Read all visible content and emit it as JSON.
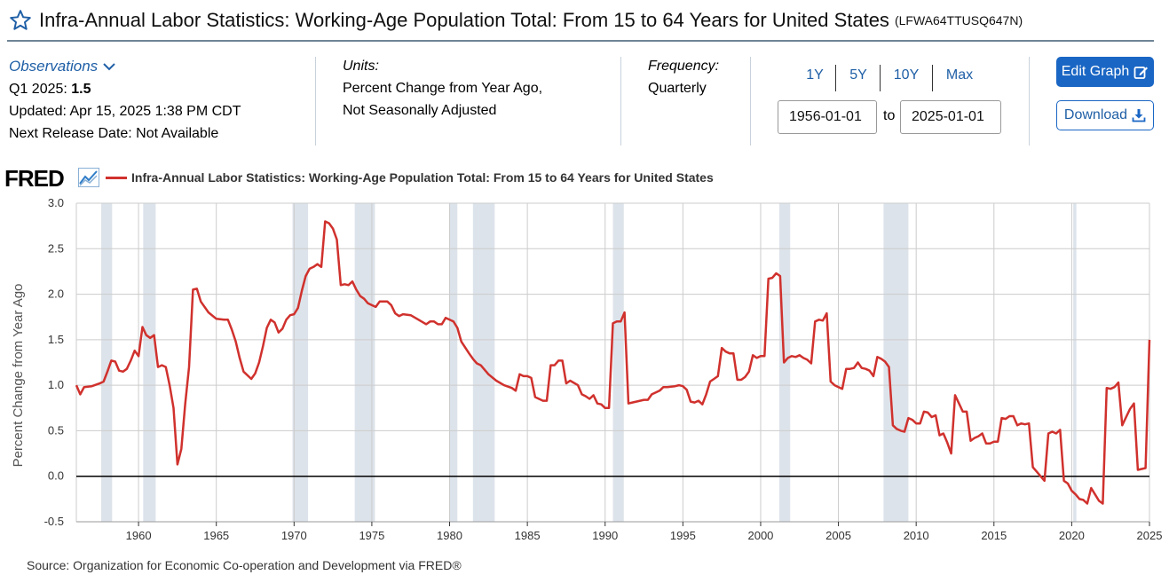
{
  "header": {
    "title": "Infra-Annual Labor Statistics: Working-Age Population Total: From 15 to 64 Years for United States",
    "series_id": "(LFWA64TTUSQ647N)",
    "star_icon": "star-outline-icon"
  },
  "observations": {
    "label": "Observations",
    "chevron_icon": "chevron-down-icon",
    "latest_period": "Q1 2025:",
    "latest_value": "1.5",
    "updated": "Updated: Apr 15, 2025 1:38 PM CDT",
    "next_release": "Next Release Date: Not Available"
  },
  "units": {
    "label": "Units:",
    "line1": "Percent Change from Year Ago,",
    "line2": "Not Seasonally Adjusted"
  },
  "frequency": {
    "label": "Frequency:",
    "value": "Quarterly"
  },
  "range": {
    "buttons": [
      "1Y",
      "5Y",
      "10Y",
      "Max"
    ],
    "start": "1956-01-01",
    "to_label": "to",
    "end": "2025-01-01"
  },
  "actions": {
    "edit_label": "Edit Graph",
    "edit_icon": "edit-icon",
    "download_label": "Download",
    "download_icon": "download-icon"
  },
  "logo": {
    "text": "FRED",
    "icon": "line-chart-icon"
  },
  "source": "Source: Organization for Economic Co-operation and Development via FRED®",
  "colors": {
    "series": "#d0312d",
    "recession": "#dde3ea",
    "grid": "#cccccc",
    "accent": "#1a66c4"
  },
  "chart_data": {
    "type": "line",
    "title": "",
    "legend": "Infra-Annual Labor Statistics: Working-Age Population Total: From 15 to 64 Years for United States",
    "xlabel": "",
    "ylabel": "Percent Change from Year Ago",
    "xlim": [
      1956,
      2025
    ],
    "ylim": [
      -0.5,
      3.0
    ],
    "yticks": [
      "3.0",
      "2.5",
      "2.0",
      "1.5",
      "1.0",
      "0.5",
      "0.0",
      "-0.5"
    ],
    "xticks": [
      "1960",
      "1965",
      "1970",
      "1975",
      "1980",
      "1985",
      "1990",
      "1995",
      "2000",
      "2005",
      "2010",
      "2015",
      "2020",
      "2025"
    ],
    "grid": true,
    "legend_position": "top-left",
    "recessions": [
      [
        1957.6,
        1958.3
      ],
      [
        1960.3,
        1961.1
      ],
      [
        1969.9,
        1970.9
      ],
      [
        1973.9,
        1975.2
      ],
      [
        1980.0,
        1980.5
      ],
      [
        1981.5,
        1982.9
      ],
      [
        1990.5,
        1991.2
      ],
      [
        2001.2,
        2001.9
      ],
      [
        2007.9,
        2009.5
      ],
      [
        2020.1,
        2020.3
      ]
    ],
    "series": [
      {
        "points": [
          [
            1956.0,
            1.0
          ],
          [
            1956.25,
            0.9
          ],
          [
            1956.5,
            0.98
          ],
          [
            1957.0,
            0.99
          ],
          [
            1957.5,
            1.02
          ],
          [
            1957.75,
            1.04
          ],
          [
            1958.0,
            1.15
          ],
          [
            1958.25,
            1.27
          ],
          [
            1958.5,
            1.26
          ],
          [
            1958.75,
            1.16
          ],
          [
            1959.0,
            1.15
          ],
          [
            1959.25,
            1.18
          ],
          [
            1959.5,
            1.27
          ],
          [
            1959.75,
            1.38
          ],
          [
            1960.0,
            1.32
          ],
          [
            1960.25,
            1.64
          ],
          [
            1960.5,
            1.55
          ],
          [
            1960.75,
            1.52
          ],
          [
            1961.0,
            1.55
          ],
          [
            1961.25,
            1.2
          ],
          [
            1961.5,
            1.22
          ],
          [
            1961.75,
            1.2
          ],
          [
            1962.0,
            1.0
          ],
          [
            1962.25,
            0.75
          ],
          [
            1962.5,
            0.13
          ],
          [
            1962.75,
            0.3
          ],
          [
            1963.0,
            0.8
          ],
          [
            1963.25,
            1.2
          ],
          [
            1963.5,
            2.05
          ],
          [
            1963.75,
            2.06
          ],
          [
            1964.0,
            1.92
          ],
          [
            1964.5,
            1.8
          ],
          [
            1965.0,
            1.73
          ],
          [
            1965.5,
            1.72
          ],
          [
            1965.75,
            1.72
          ],
          [
            1966.0,
            1.61
          ],
          [
            1966.25,
            1.48
          ],
          [
            1966.5,
            1.3
          ],
          [
            1966.75,
            1.15
          ],
          [
            1967.25,
            1.07
          ],
          [
            1967.5,
            1.13
          ],
          [
            1967.75,
            1.25
          ],
          [
            1968.0,
            1.43
          ],
          [
            1968.25,
            1.63
          ],
          [
            1968.5,
            1.72
          ],
          [
            1968.75,
            1.69
          ],
          [
            1969.0,
            1.58
          ],
          [
            1969.25,
            1.62
          ],
          [
            1969.5,
            1.72
          ],
          [
            1969.75,
            1.77
          ],
          [
            1970.0,
            1.78
          ],
          [
            1970.25,
            1.85
          ],
          [
            1970.5,
            2.04
          ],
          [
            1970.75,
            2.2
          ],
          [
            1971.0,
            2.28
          ],
          [
            1971.25,
            2.3
          ],
          [
            1971.5,
            2.33
          ],
          [
            1971.75,
            2.3
          ],
          [
            1972.0,
            2.8
          ],
          [
            1972.25,
            2.78
          ],
          [
            1972.5,
            2.72
          ],
          [
            1972.75,
            2.6
          ],
          [
            1973.0,
            2.1
          ],
          [
            1973.25,
            2.11
          ],
          [
            1973.5,
            2.1
          ],
          [
            1973.75,
            2.14
          ],
          [
            1974.0,
            2.05
          ],
          [
            1974.25,
            1.98
          ],
          [
            1974.5,
            1.95
          ],
          [
            1974.75,
            1.9
          ],
          [
            1975.0,
            1.88
          ],
          [
            1975.25,
            1.86
          ],
          [
            1975.5,
            1.92
          ],
          [
            1976.0,
            1.92
          ],
          [
            1976.25,
            1.88
          ],
          [
            1976.5,
            1.79
          ],
          [
            1976.75,
            1.76
          ],
          [
            1977.0,
            1.78
          ],
          [
            1977.5,
            1.77
          ],
          [
            1978.0,
            1.72
          ],
          [
            1978.5,
            1.67
          ],
          [
            1978.75,
            1.7
          ],
          [
            1979.0,
            1.7
          ],
          [
            1979.25,
            1.67
          ],
          [
            1979.5,
            1.67
          ],
          [
            1979.75,
            1.74
          ],
          [
            1980.0,
            1.72
          ],
          [
            1980.25,
            1.7
          ],
          [
            1980.5,
            1.63
          ],
          [
            1980.75,
            1.48
          ],
          [
            1981.25,
            1.35
          ],
          [
            1981.5,
            1.29
          ],
          [
            1981.75,
            1.24
          ],
          [
            1982.0,
            1.22
          ],
          [
            1982.5,
            1.12
          ],
          [
            1983.0,
            1.05
          ],
          [
            1983.5,
            1.0
          ],
          [
            1984.0,
            0.97
          ],
          [
            1984.25,
            0.94
          ],
          [
            1984.5,
            1.12
          ],
          [
            1984.75,
            1.1
          ],
          [
            1985.0,
            1.1
          ],
          [
            1985.25,
            1.08
          ],
          [
            1985.5,
            0.87
          ],
          [
            1986.0,
            0.83
          ],
          [
            1986.25,
            0.83
          ],
          [
            1986.5,
            1.22
          ],
          [
            1986.75,
            1.22
          ],
          [
            1987.0,
            1.27
          ],
          [
            1987.25,
            1.27
          ],
          [
            1987.5,
            1.02
          ],
          [
            1987.75,
            1.05
          ],
          [
            1988.25,
            1.0
          ],
          [
            1988.5,
            0.9
          ],
          [
            1988.75,
            0.88
          ],
          [
            1989.0,
            0.85
          ],
          [
            1989.25,
            0.89
          ],
          [
            1989.5,
            0.8
          ],
          [
            1989.75,
            0.79
          ],
          [
            1990.0,
            0.75
          ],
          [
            1990.25,
            0.75
          ],
          [
            1990.5,
            1.68
          ],
          [
            1990.75,
            1.7
          ],
          [
            1991.0,
            1.7
          ],
          [
            1991.25,
            1.8
          ],
          [
            1991.5,
            0.8
          ],
          [
            1991.75,
            0.81
          ],
          [
            1992.0,
            0.82
          ],
          [
            1992.5,
            0.84
          ],
          [
            1992.75,
            0.84
          ],
          [
            1993.0,
            0.9
          ],
          [
            1993.5,
            0.94
          ],
          [
            1993.75,
            0.98
          ],
          [
            1994.0,
            0.98
          ],
          [
            1994.5,
            0.99
          ],
          [
            1994.75,
            1.0
          ],
          [
            1995.0,
            0.99
          ],
          [
            1995.25,
            0.95
          ],
          [
            1995.5,
            0.82
          ],
          [
            1995.75,
            0.81
          ],
          [
            1996.0,
            0.83
          ],
          [
            1996.25,
            0.79
          ],
          [
            1996.5,
            0.9
          ],
          [
            1996.75,
            1.04
          ],
          [
            1997.0,
            1.07
          ],
          [
            1997.25,
            1.1
          ],
          [
            1997.5,
            1.41
          ],
          [
            1997.75,
            1.37
          ],
          [
            1998.0,
            1.35
          ],
          [
            1998.25,
            1.35
          ],
          [
            1998.5,
            1.06
          ],
          [
            1998.75,
            1.06
          ],
          [
            1999.0,
            1.09
          ],
          [
            1999.25,
            1.15
          ],
          [
            1999.5,
            1.33
          ],
          [
            1999.75,
            1.3
          ],
          [
            2000.0,
            1.32
          ],
          [
            2000.25,
            1.32
          ],
          [
            2000.5,
            2.17
          ],
          [
            2000.75,
            2.18
          ],
          [
            2001.0,
            2.23
          ],
          [
            2001.25,
            2.2
          ],
          [
            2001.5,
            1.25
          ],
          [
            2001.75,
            1.3
          ],
          [
            2002.0,
            1.32
          ],
          [
            2002.25,
            1.31
          ],
          [
            2002.5,
            1.33
          ],
          [
            2002.75,
            1.3
          ],
          [
            2003.0,
            1.28
          ],
          [
            2003.25,
            1.24
          ],
          [
            2003.5,
            1.7
          ],
          [
            2003.75,
            1.72
          ],
          [
            2004.0,
            1.71
          ],
          [
            2004.25,
            1.79
          ],
          [
            2004.5,
            1.04
          ],
          [
            2004.75,
            1.0
          ],
          [
            2005.0,
            0.98
          ],
          [
            2005.25,
            0.96
          ],
          [
            2005.5,
            1.18
          ],
          [
            2005.75,
            1.18
          ],
          [
            2006.0,
            1.19
          ],
          [
            2006.25,
            1.25
          ],
          [
            2006.5,
            1.19
          ],
          [
            2006.75,
            1.18
          ],
          [
            2007.0,
            1.16
          ],
          [
            2007.25,
            1.1
          ],
          [
            2007.5,
            1.31
          ],
          [
            2007.75,
            1.29
          ],
          [
            2008.0,
            1.26
          ],
          [
            2008.25,
            1.2
          ],
          [
            2008.5,
            0.56
          ],
          [
            2008.75,
            0.52
          ],
          [
            2009.0,
            0.5
          ],
          [
            2009.25,
            0.49
          ],
          [
            2009.5,
            0.64
          ],
          [
            2009.75,
            0.62
          ],
          [
            2010.0,
            0.58
          ],
          [
            2010.25,
            0.58
          ],
          [
            2010.5,
            0.71
          ],
          [
            2010.75,
            0.7
          ],
          [
            2011.0,
            0.65
          ],
          [
            2011.25,
            0.67
          ],
          [
            2011.5,
            0.45
          ],
          [
            2011.75,
            0.47
          ],
          [
            2012.0,
            0.37
          ],
          [
            2012.25,
            0.25
          ],
          [
            2012.5,
            0.89
          ],
          [
            2012.75,
            0.8
          ],
          [
            2013.0,
            0.71
          ],
          [
            2013.25,
            0.71
          ],
          [
            2013.5,
            0.39
          ],
          [
            2013.75,
            0.42
          ],
          [
            2014.0,
            0.44
          ],
          [
            2014.25,
            0.47
          ],
          [
            2014.5,
            0.36
          ],
          [
            2014.75,
            0.36
          ],
          [
            2015.0,
            0.38
          ],
          [
            2015.25,
            0.38
          ],
          [
            2015.5,
            0.64
          ],
          [
            2015.75,
            0.63
          ],
          [
            2016.0,
            0.66
          ],
          [
            2016.25,
            0.66
          ],
          [
            2016.5,
            0.56
          ],
          [
            2016.75,
            0.58
          ],
          [
            2017.0,
            0.57
          ],
          [
            2017.25,
            0.58
          ],
          [
            2017.5,
            0.1
          ],
          [
            2017.75,
            0.05
          ],
          [
            2018.0,
            0.0
          ],
          [
            2018.25,
            -0.05
          ],
          [
            2018.5,
            0.47
          ],
          [
            2018.75,
            0.49
          ],
          [
            2019.0,
            0.47
          ],
          [
            2019.25,
            0.51
          ],
          [
            2019.5,
            -0.05
          ],
          [
            2019.75,
            -0.08
          ],
          [
            2020.0,
            -0.16
          ],
          [
            2020.25,
            -0.2
          ],
          [
            2020.5,
            -0.25
          ],
          [
            2020.75,
            -0.26
          ],
          [
            2021.0,
            -0.3
          ],
          [
            2021.25,
            -0.13
          ],
          [
            2021.5,
            -0.2
          ],
          [
            2021.75,
            -0.27
          ],
          [
            2022.0,
            -0.3
          ],
          [
            2022.25,
            0.97
          ],
          [
            2022.5,
            0.96
          ],
          [
            2022.75,
            0.98
          ],
          [
            2023.0,
            1.03
          ],
          [
            2023.25,
            0.56
          ],
          [
            2023.5,
            0.65
          ],
          [
            2023.75,
            0.74
          ],
          [
            2024.0,
            0.8
          ],
          [
            2024.25,
            0.07
          ],
          [
            2024.5,
            0.08
          ],
          [
            2024.75,
            0.09
          ],
          [
            2025.0,
            1.5
          ]
        ]
      }
    ]
  }
}
